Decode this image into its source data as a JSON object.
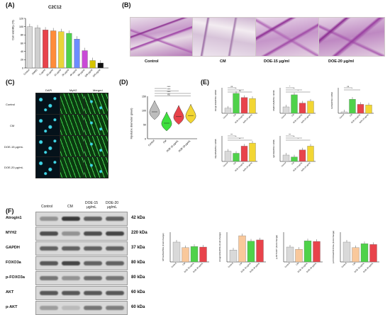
{
  "panels": {
    "A": {
      "letter": "(A)",
      "title": "C2C12",
      "ylabel": "Cell viability (%)",
      "yticks": [
        "0",
        "20",
        "40",
        "60",
        "80",
        "100",
        "120"
      ]
    },
    "B": {
      "letter": "(B)",
      "labels": [
        "Control",
        "CM",
        "DOE-15 μg/ml",
        "DOE-20 μg/ml"
      ]
    },
    "C": {
      "letter": "(C)",
      "channels": [
        "DAPI",
        "MyH2",
        "Merged"
      ],
      "rows": [
        "Control",
        "CM",
        "DOE-15 μg/mL",
        "DOE-20 μg/mL"
      ]
    },
    "D": {
      "letter": "(D)",
      "ylabel": "Myotube diameter (pixel)",
      "yticks": [
        "0",
        "50",
        "100",
        "150"
      ],
      "xlabels": [
        "Control",
        "CM",
        "DOE-15 μg/mL",
        "DOE-20 μg/mL"
      ],
      "sig": [
        "****",
        "****",
        "****",
        "ns"
      ]
    },
    "E": {
      "letter": "(E)",
      "charts": [
        {
          "ylabel": "Atrogin1/GAPDH mRNA",
          "sig": [
            "ns",
            "**",
            "ns"
          ]
        },
        {
          "ylabel": "MuRF1/GAPDH mRNA",
          "sig": [
            "*",
            "**",
            "*"
          ]
        },
        {
          "ylabel": "IL6/GAPDH mRNA",
          "sig": [
            "ns",
            "*"
          ]
        },
        {
          "ylabel": "MyoD/GAPDH mRNA",
          "sig": [
            "***",
            "**",
            "**"
          ]
        },
        {
          "ylabel": "IgF1/GAPDH mRNA",
          "sig": [
            "***",
            "**",
            "*"
          ]
        }
      ],
      "xlabels": [
        "Control",
        "CM",
        "DOE-15 μg/mL",
        "DOE-20 μg/mL"
      ]
    },
    "F": {
      "letter": "(F)",
      "lane_labels": [
        "Control",
        "CM",
        "DOE-15 μg/mL",
        "DOE-20 μg/mL"
      ],
      "proteins": [
        {
          "name": "Atrogin1",
          "kda": "42 kDa"
        },
        {
          "name": "MYH2",
          "kda": "220 kDa"
        },
        {
          "name": "GAPDH",
          "kda": "37 kDa"
        },
        {
          "name": "FOXO3a",
          "kda": "80 kDa"
        },
        {
          "name": "p-FOXO3a",
          "kda": "80 kDa"
        },
        {
          "name": "AKT",
          "kda": "60 kDa"
        },
        {
          "name": "p-AKT",
          "kda": "60 kDa"
        }
      ],
      "charts": [
        {
          "ylabel": "MYH2/GAPDH (Fold change)"
        },
        {
          "ylabel": "Atrogin1/GAPDH (Fold change)"
        },
        {
          "ylabel": "p-AKT/AKT (Fold change)"
        },
        {
          "ylabel": "p-FOXO3a/FOXO3a (Fold change)"
        }
      ],
      "xlabels": [
        "Control",
        "CM",
        "DOE-15 μg/mL",
        "DOE-20 μg/mL"
      ]
    }
  },
  "chart_data": [
    {
      "type": "bar",
      "panel": "A",
      "title": "C2C12",
      "ylabel": "Cell viability (%)",
      "categories": [
        "Control",
        "DMSO",
        "5 μg/ml",
        "10 μg/ml",
        "15 μg/ml",
        "20 μg/ml",
        "40 μg/ml",
        "80 μg/ml",
        "100 μg/ml",
        "150 μg/ml"
      ],
      "values": [
        100,
        97,
        92,
        90,
        88,
        84,
        70,
        42,
        18,
        12
      ],
      "ylim": [
        0,
        120
      ],
      "colors": [
        "#d9d9d9",
        "#cfcfcf",
        "#e8434b",
        "#ff8c3a",
        "#e9d43a",
        "#4fd24a",
        "#6b8cff",
        "#c94ad6",
        "#d6c400",
        "#111111"
      ]
    },
    {
      "type": "scatter",
      "panel": "D",
      "ylabel": "Myotube diameter (pixel)",
      "categories": [
        "Control",
        "CM",
        "DOE-15 μg/mL",
        "DOE-20 μg/mL"
      ],
      "medians": [
        95,
        55,
        78,
        82
      ],
      "ylim": [
        0,
        150
      ],
      "colors": [
        "#bdbdbd",
        "#3ee03e",
        "#e8434b",
        "#f2d633"
      ]
    },
    {
      "type": "bar",
      "panel": "E",
      "categories": [
        "Control",
        "CM",
        "DOE-15 μg/mL",
        "DOE-20 μg/mL"
      ],
      "series": [
        {
          "name": "Atrogin1/GAPDH mRNA",
          "values": [
            1.0,
            3.9,
            3.1,
            2.9
          ],
          "ylim": [
            0,
            5
          ]
        },
        {
          "name": "MuRF1/GAPDH mRNA",
          "values": [
            1.0,
            2.9,
            1.6,
            1.9
          ],
          "ylim": [
            0,
            4
          ]
        },
        {
          "name": "IL6/GAPDH mRNA",
          "values": [
            1.1,
            11,
            7,
            6.5
          ],
          "ylim": [
            0,
            20
          ]
        },
        {
          "name": "MyoD/GAPDH mRNA",
          "values": [
            1.0,
            0.8,
            1.5,
            1.8
          ],
          "ylim": [
            0,
            2.5
          ]
        },
        {
          "name": "IgF1/GAPDH mRNA",
          "values": [
            1.0,
            0.7,
            1.8,
            2.4
          ],
          "ylim": [
            0,
            4
          ]
        }
      ],
      "colors": [
        "#d9d9d9",
        "#4fd24a",
        "#e8434b",
        "#f2d633"
      ]
    },
    {
      "type": "bar",
      "panel": "F",
      "categories": [
        "Control",
        "CM",
        "DOE-15 μg/mL",
        "DOE-20 μg/mL"
      ],
      "series": [
        {
          "name": "MYH2/GAPDH (Fold change)",
          "values": [
            1.0,
            0.72,
            0.78,
            0.75
          ],
          "ylim": [
            0,
            1.5
          ]
        },
        {
          "name": "Atrogin1/GAPDH (Fold change)",
          "values": [
            1.0,
            2.2,
            1.75,
            1.85
          ],
          "ylim": [
            0,
            2.5
          ]
        },
        {
          "name": "p-AKT/AKT (Fold change)",
          "values": [
            1.0,
            0.85,
            1.42,
            1.38
          ],
          "ylim": [
            0,
            2.0
          ]
        },
        {
          "name": "p-FOXO3a/FOXO3a (Fold change)",
          "values": [
            1.0,
            0.72,
            0.92,
            0.88
          ],
          "ylim": [
            0,
            1.5
          ]
        }
      ],
      "colors": [
        "#d9d9d9",
        "#f9c89b",
        "#4fd24a",
        "#e8434b"
      ]
    }
  ]
}
